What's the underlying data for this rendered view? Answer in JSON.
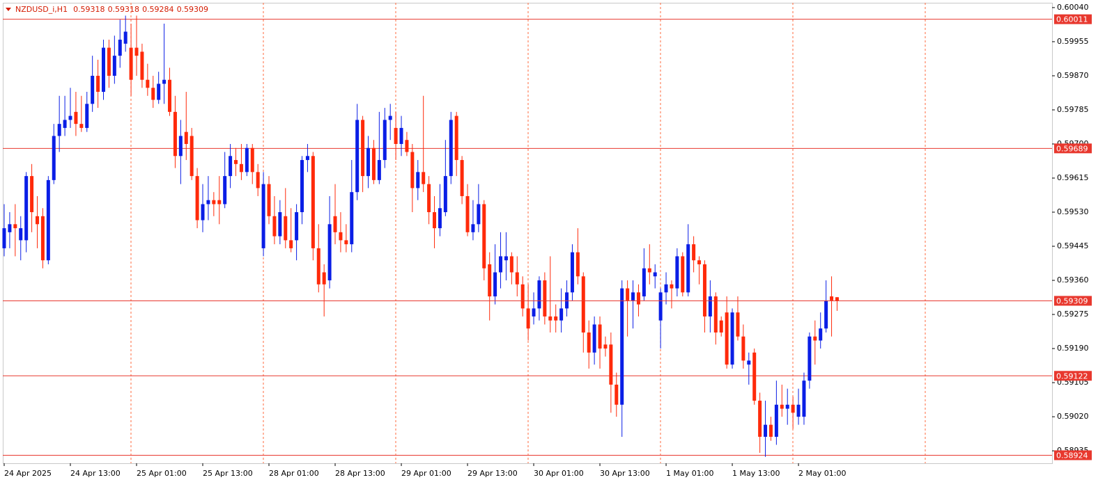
{
  "chart_data": {
    "type": "candlestick",
    "title": "NZDUSD_i,H1",
    "categories": [
      "24 Apr 2025",
      null,
      null,
      null,
      null,
      null,
      null,
      null,
      null,
      null,
      null,
      null,
      "24 Apr 13:00",
      null,
      null,
      null,
      null,
      null,
      null,
      null,
      null,
      null,
      null,
      null,
      "25 Apr 01:00",
      null,
      null,
      null,
      null,
      null,
      null,
      null,
      null,
      null,
      null,
      null,
      "25 Apr 13:00",
      null,
      null,
      null,
      null,
      null,
      null,
      null,
      null,
      null,
      null,
      null,
      "28 Apr 01:00",
      null,
      null,
      null,
      null,
      null,
      null,
      null,
      null,
      null,
      null,
      null,
      "28 Apr 13:00",
      null,
      null,
      null,
      null,
      null,
      null,
      null,
      null,
      null,
      null,
      null,
      "29 Apr 01:00",
      null,
      null,
      null,
      null,
      null,
      null,
      null,
      null,
      null,
      null,
      null,
      "29 Apr 13:00",
      null,
      null,
      null,
      null,
      null,
      null,
      null,
      null,
      null,
      null,
      null,
      "30 Apr 01:00",
      null,
      null,
      null,
      null,
      null,
      null,
      null,
      null,
      null,
      null,
      null,
      "30 Apr 13:00",
      null,
      null,
      null,
      null,
      null,
      null,
      null,
      null,
      null,
      null,
      null,
      "1 May 01:00",
      null,
      null,
      null,
      null,
      null,
      null,
      null,
      null,
      null,
      null,
      null,
      "1 May 13:00",
      null,
      null,
      null,
      null,
      null,
      null,
      null,
      null,
      null,
      null,
      null,
      "2 May 01:00",
      null,
      null,
      null,
      null,
      null,
      null,
      null
    ],
    "open": [
      0.5944,
      0.5948,
      0.595,
      0.5946,
      0.5946,
      0.5962,
      0.5952,
      0.5952,
      0.5941,
      0.5961,
      0.5972,
      0.5974,
      0.5976,
      0.5978,
      0.5975,
      0.5974,
      0.598,
      0.5987,
      0.5983,
      0.5994,
      0.5987,
      0.5992,
      0.5995,
      0.5994,
      0.5994,
      0.5993,
      0.5986,
      0.5984,
      0.5981,
      0.5985,
      0.5986,
      0.5978,
      0.5967,
      0.5973,
      0.5972,
      0.5962,
      0.5951,
      0.5955,
      0.5956,
      0.5956,
      0.5955,
      0.5962,
      0.5966,
      0.5965,
      0.5963,
      0.5969,
      0.5963,
      0.5944,
      0.596,
      0.5952,
      0.5947,
      0.5952,
      0.5946,
      0.5946,
      0.5953,
      0.5966,
      0.5967,
      0.5944,
      0.5938,
      0.5936,
      0.5952,
      0.5948,
      0.5946,
      0.5945,
      0.5958,
      0.5976,
      0.5962,
      0.5969,
      0.5961,
      0.5966,
      0.5976,
      0.5974,
      0.597,
      0.5971,
      0.5968,
      0.5959,
      0.5963,
      0.596,
      0.5953,
      0.5949,
      0.5953,
      0.5962,
      0.5977,
      0.5966,
      0.5957,
      0.5948,
      0.595,
      0.5955,
      0.594,
      0.5932,
      0.5938,
      0.5941,
      0.5942,
      0.5938,
      0.5935,
      0.5929,
      0.5927,
      0.5929,
      0.5936,
      0.5927,
      0.5927,
      0.5926,
      0.5929,
      0.5933,
      0.5943,
      0.5937,
      0.5923,
      0.5918,
      0.5925,
      0.592,
      0.592,
      0.591,
      0.5905,
      0.5934,
      0.5931,
      0.5933,
      0.5932,
      0.5939,
      0.5937,
      0.5926,
      0.5933,
      0.5935,
      0.5934,
      0.5942,
      0.5933,
      0.5945,
      0.5941,
      0.594,
      0.5927,
      0.5932,
      0.5926,
      0.5928,
      0.5915,
      0.5928,
      0.5922,
      0.5915,
      0.5918,
      0.5906,
      0.5897,
      0.59,
      0.5897,
      0.5905,
      0.5904,
      0.5905,
      0.5902,
      0.5902,
      0.5911,
      0.5922,
      0.5921,
      0.5924,
      0.5932,
      0.59318
    ],
    "high": [
      0.5955,
      0.5953,
      0.5955,
      0.5952,
      0.5963,
      0.5965,
      0.5957,
      0.5954,
      0.5962,
      0.5975,
      0.5982,
      0.5982,
      0.5984,
      0.5983,
      0.5982,
      0.5983,
      0.5992,
      0.5991,
      0.5996,
      0.5996,
      0.5997,
      0.6001,
      0.6002,
      0.6,
      0.6002,
      0.5995,
      0.599,
      0.5987,
      0.5988,
      0.6,
      0.5989,
      0.5982,
      0.5976,
      0.5983,
      0.5974,
      0.5964,
      0.596,
      0.5962,
      0.5958,
      0.5962,
      0.5968,
      0.597,
      0.5969,
      0.597,
      0.597,
      0.597,
      0.5965,
      0.5963,
      0.5962,
      0.5957,
      0.5956,
      0.5959,
      0.5954,
      0.5955,
      0.5967,
      0.597,
      0.5968,
      0.595,
      0.594,
      0.5957,
      0.596,
      0.5953,
      0.595,
      0.5966,
      0.598,
      0.5977,
      0.5972,
      0.5971,
      0.5978,
      0.5979,
      0.598,
      0.5978,
      0.5977,
      0.5973,
      0.597,
      0.5966,
      0.5982,
      0.5962,
      0.5957,
      0.596,
      0.5971,
      0.5978,
      0.5978,
      0.5967,
      0.596,
      0.5956,
      0.596,
      0.5956,
      0.5943,
      0.5945,
      0.5948,
      0.5948,
      0.5943,
      0.5942,
      0.5937,
      0.5935,
      0.5933,
      0.5937,
      0.5938,
      0.5942,
      0.593,
      0.5934,
      0.5936,
      0.5945,
      0.5949,
      0.5938,
      0.5926,
      0.5927,
      0.5927,
      0.5922,
      0.5923,
      0.5913,
      0.5936,
      0.5936,
      0.5936,
      0.5935,
      0.5944,
      0.5945,
      0.594,
      0.5934,
      0.5938,
      0.5936,
      0.5944,
      0.5943,
      0.595,
      0.5947,
      0.5942,
      0.5941,
      0.5936,
      0.5933,
      0.5927,
      0.5932,
      0.5929,
      0.5932,
      0.5925,
      0.5918,
      0.5919,
      0.5908,
      0.5906,
      0.5902,
      0.5911,
      0.591,
      0.5909,
      0.5907,
      0.5909,
      0.5913,
      0.5923,
      0.5926,
      0.5928,
      0.5936,
      0.5937,
      0.59318
    ],
    "low": [
      0.5942,
      0.5944,
      0.5942,
      0.5941,
      0.5943,
      0.5948,
      0.5944,
      0.5939,
      0.594,
      0.596,
      0.5968,
      0.5972,
      0.5974,
      0.5972,
      0.5973,
      0.5973,
      0.5978,
      0.5979,
      0.5981,
      0.5984,
      0.5985,
      0.5989,
      0.5993,
      0.5982,
      0.5987,
      0.5984,
      0.5982,
      0.5979,
      0.598,
      0.598,
      0.5977,
      0.5964,
      0.596,
      0.5966,
      0.5961,
      0.5949,
      0.5948,
      0.5951,
      0.5952,
      0.595,
      0.5954,
      0.5959,
      0.5962,
      0.5961,
      0.5962,
      0.596,
      0.5957,
      0.5942,
      0.595,
      0.5945,
      0.5945,
      0.5944,
      0.5943,
      0.5941,
      0.595,
      0.5963,
      0.5941,
      0.5933,
      0.5927,
      0.5934,
      0.5945,
      0.5943,
      0.5943,
      0.5943,
      0.5956,
      0.5958,
      0.5959,
      0.596,
      0.596,
      0.5964,
      0.5971,
      0.5966,
      0.5967,
      0.5967,
      0.5953,
      0.5956,
      0.5958,
      0.595,
      0.5944,
      0.5947,
      0.5952,
      0.596,
      0.5962,
      0.5955,
      0.5947,
      0.5946,
      0.5948,
      0.5936,
      0.5926,
      0.593,
      0.5934,
      0.5936,
      0.5935,
      0.5932,
      0.5927,
      0.5921,
      0.5925,
      0.5926,
      0.5925,
      0.5923,
      0.5923,
      0.5923,
      0.5927,
      0.5931,
      0.5935,
      0.5918,
      0.5914,
      0.5915,
      0.5914,
      0.5917,
      0.5903,
      0.5902,
      0.5897,
      0.5922,
      0.5924,
      0.5927,
      0.5931,
      0.5935,
      0.5934,
      0.5919,
      0.593,
      0.5929,
      0.5932,
      0.5932,
      0.5932,
      0.5938,
      0.5935,
      0.5923,
      0.5923,
      0.592,
      0.5922,
      0.5914,
      0.5914,
      0.5921,
      0.5914,
      0.591,
      0.5905,
      0.5893,
      0.5892,
      0.5896,
      0.5895,
      0.5902,
      0.59,
      0.5899,
      0.59,
      0.59,
      0.5909,
      0.5915,
      0.5919,
      0.5923,
      0.5922,
      0.59284
    ],
    "close": [
      0.5949,
      0.595,
      0.5949,
      0.5949,
      0.5962,
      0.5953,
      0.595,
      0.5941,
      0.5961,
      0.5972,
      0.5975,
      0.5976,
      0.5977,
      0.5975,
      0.5974,
      0.598,
      0.5987,
      0.5983,
      0.5994,
      0.5987,
      0.5992,
      0.5996,
      0.5998,
      0.5986,
      0.5992,
      0.5986,
      0.5984,
      0.5981,
      0.5985,
      0.5986,
      0.5978,
      0.5967,
      0.5972,
      0.597,
      0.5962,
      0.5951,
      0.5955,
      0.5956,
      0.5955,
      0.5955,
      0.5962,
      0.5967,
      0.5965,
      0.5963,
      0.5969,
      0.5963,
      0.5959,
      0.596,
      0.5952,
      0.5947,
      0.5953,
      0.5946,
      0.5944,
      0.5953,
      0.5966,
      0.5967,
      0.5944,
      0.5935,
      0.5935,
      0.595,
      0.5948,
      0.5946,
      0.5945,
      0.5958,
      0.5976,
      0.5962,
      0.5969,
      0.5961,
      0.5966,
      0.5976,
      0.5977,
      0.597,
      0.5974,
      0.5968,
      0.5959,
      0.5963,
      0.596,
      0.5953,
      0.5949,
      0.5954,
      0.5962,
      0.5976,
      0.5966,
      0.5957,
      0.5948,
      0.595,
      0.5955,
      0.5939,
      0.5932,
      0.5938,
      0.5942,
      0.5942,
      0.5938,
      0.5935,
      0.5929,
      0.5924,
      0.5929,
      0.5936,
      0.5927,
      0.5926,
      0.5926,
      0.5929,
      0.5933,
      0.5943,
      0.5937,
      0.5923,
      0.5918,
      0.5925,
      0.5919,
      0.5919,
      0.591,
      0.5905,
      0.5934,
      0.5931,
      0.5933,
      0.593,
      0.5939,
      0.5938,
      0.5938,
      0.5933,
      0.5935,
      0.5934,
      0.5942,
      0.5933,
      0.5945,
      0.5941,
      0.594,
      0.5927,
      0.5932,
      0.5923,
      0.5923,
      0.5915,
      0.5928,
      0.5922,
      0.5916,
      0.5916,
      0.5906,
      0.5897,
      0.59,
      0.5897,
      0.5905,
      0.5904,
      0.5905,
      0.5903,
      0.5905,
      0.5911,
      0.5922,
      0.5921,
      0.5924,
      0.5931,
      0.5931,
      0.59309
    ],
    "bull_color": "#0a1ee6",
    "bear_color": "#ff2a0a",
    "ylim": [
      0.58904,
      0.60052
    ],
    "yticks": [
      {
        "value": 0.6004,
        "label": "0.60040"
      },
      0.59955,
      {
        "value": 0.5987,
        "label": "0.59870"
      },
      0.59785,
      {
        "value": 0.597,
        "label": "0.59700"
      },
      0.59615,
      {
        "value": 0.5953,
        "label": "0.59530"
      },
      0.59445,
      {
        "value": 0.5936,
        "label": "0.59360"
      },
      0.59275,
      {
        "value": 0.5919,
        "label": "0.59190"
      },
      0.59105,
      {
        "value": 0.5902,
        "label": "0.59020"
      },
      0.58935
    ],
    "hlines": [
      0.60011,
      0.59689,
      0.59122,
      0.58924
    ],
    "hline_color": "#e8382e"
  }
}
